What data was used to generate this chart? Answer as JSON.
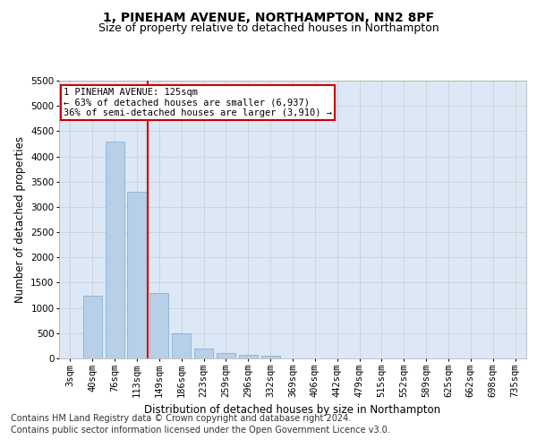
{
  "title": "1, PINEHAM AVENUE, NORTHAMPTON, NN2 8PF",
  "subtitle": "Size of property relative to detached houses in Northampton",
  "xlabel": "Distribution of detached houses by size in Northampton",
  "ylabel": "Number of detached properties",
  "categories": [
    "3sqm",
    "40sqm",
    "76sqm",
    "113sqm",
    "149sqm",
    "186sqm",
    "223sqm",
    "259sqm",
    "296sqm",
    "332sqm",
    "369sqm",
    "406sqm",
    "442sqm",
    "479sqm",
    "515sqm",
    "552sqm",
    "589sqm",
    "625sqm",
    "662sqm",
    "698sqm",
    "735sqm"
  ],
  "values": [
    0,
    1250,
    4300,
    3300,
    1300,
    500,
    200,
    100,
    75,
    50,
    0,
    0,
    0,
    0,
    0,
    0,
    0,
    0,
    0,
    0,
    0
  ],
  "bar_color": "#b8cfe8",
  "bar_edge_color": "#7aaad0",
  "red_line_x": 3.5,
  "annotation_title": "1 PINEHAM AVENUE: 125sqm",
  "annotation_line1": "← 63% of detached houses are smaller (6,937)",
  "annotation_line2": "36% of semi-detached houses are larger (3,910) →",
  "annotation_box_color": "#ffffff",
  "annotation_box_edge": "#cc0000",
  "red_line_color": "#cc0000",
  "ylim": [
    0,
    5500
  ],
  "yticks": [
    0,
    500,
    1000,
    1500,
    2000,
    2500,
    3000,
    3500,
    4000,
    4500,
    5000,
    5500
  ],
  "grid_color": "#cccccc",
  "bg_color": "#dce8f5",
  "footer1": "Contains HM Land Registry data © Crown copyright and database right 2024.",
  "footer2": "Contains public sector information licensed under the Open Government Licence v3.0.",
  "title_fontsize": 10,
  "subtitle_fontsize": 9,
  "axis_label_fontsize": 8.5,
  "tick_fontsize": 7.5,
  "footer_fontsize": 7
}
